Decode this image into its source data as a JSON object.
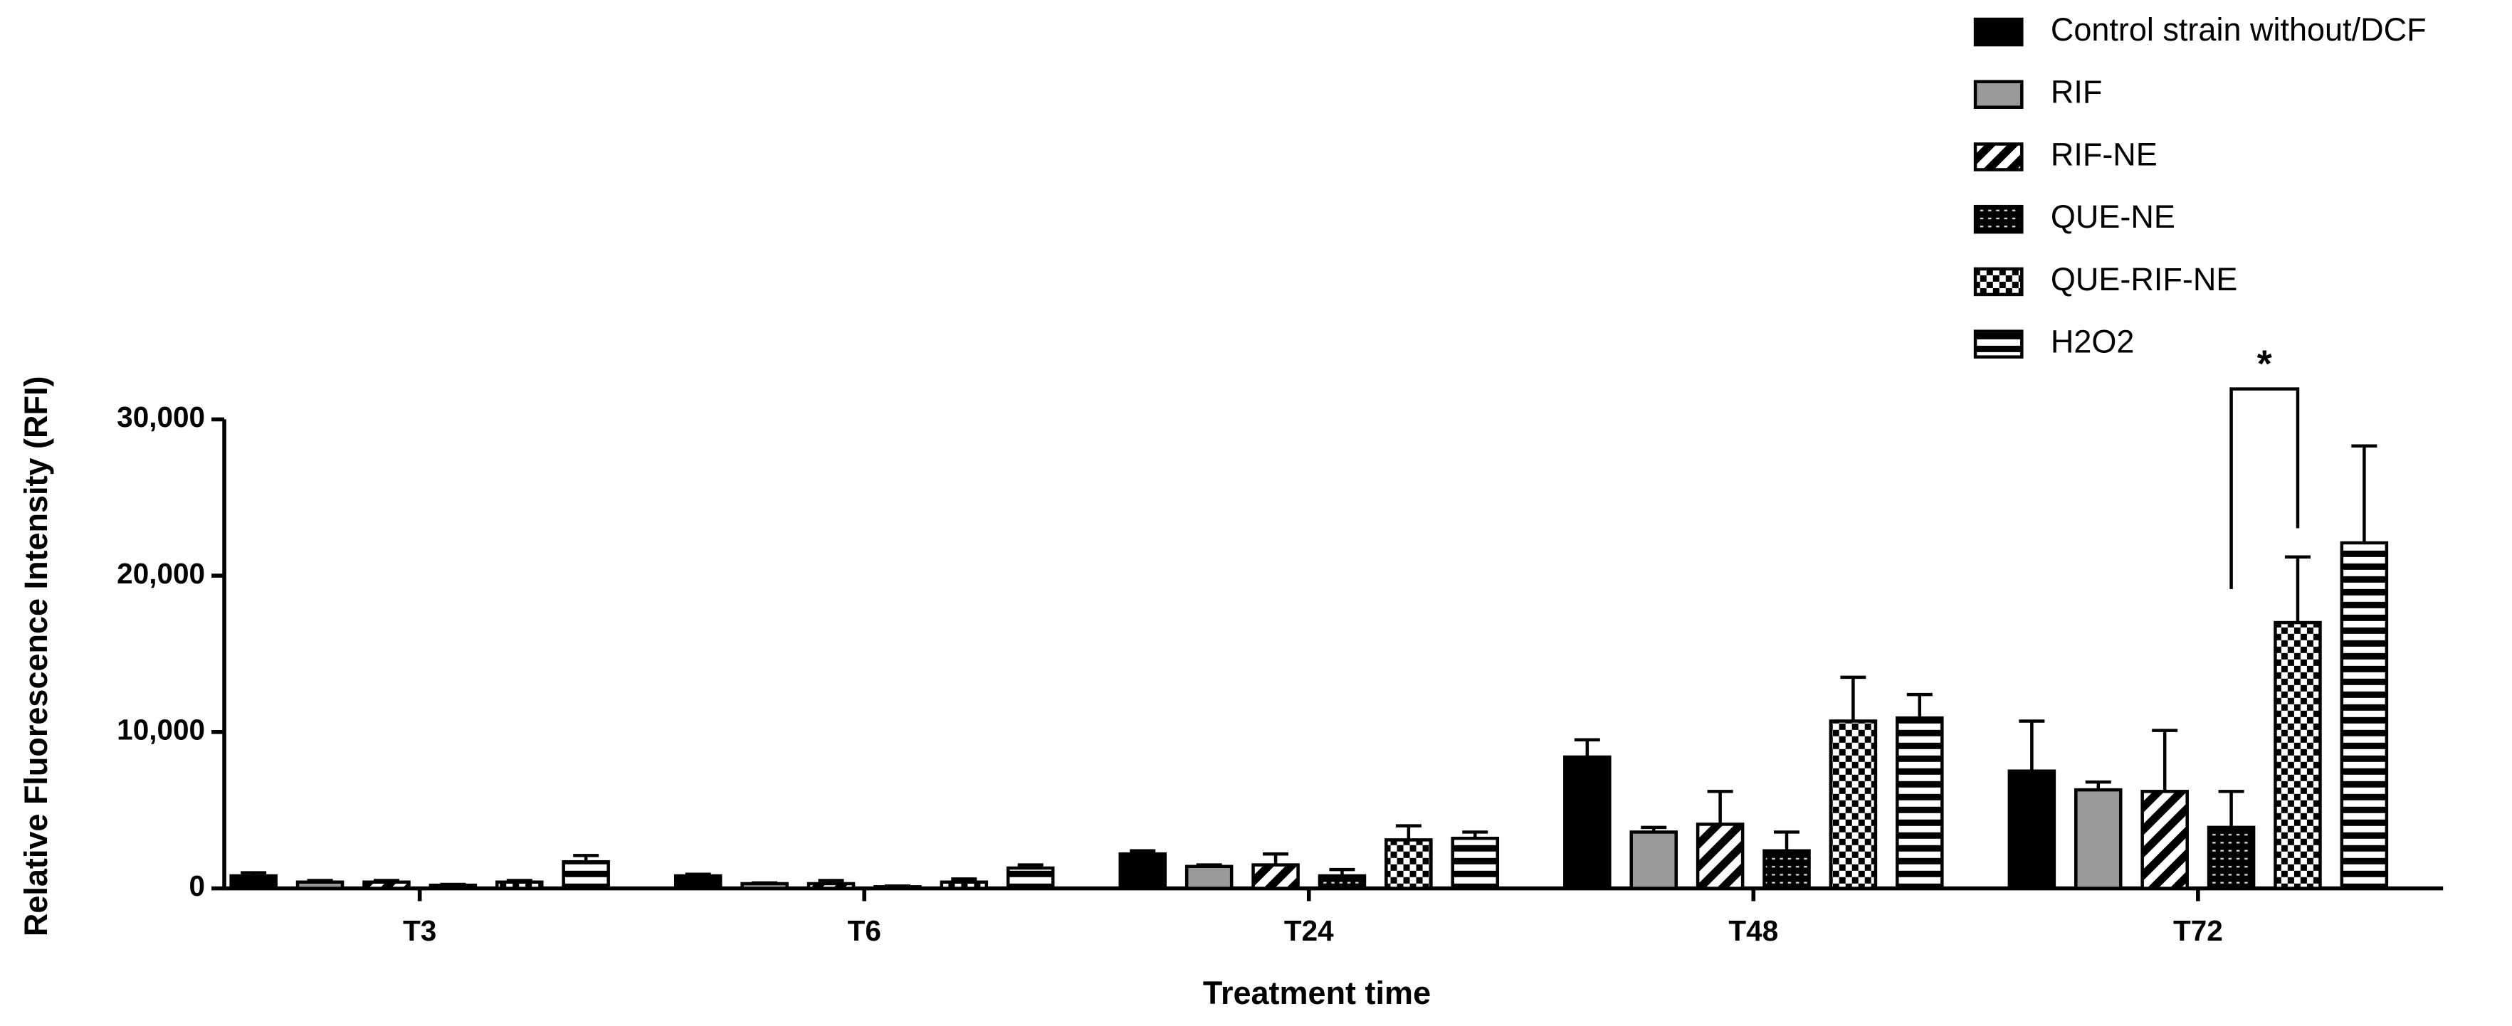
{
  "chart_data": {
    "type": "bar",
    "x_label": "Treatment time",
    "y_label": "Relative Fluorescence Intensity (RFI)",
    "categories": [
      "T3",
      "T6",
      "T24",
      "T48",
      "T72"
    ],
    "ylim": [
      0,
      30000
    ],
    "yticks": [
      {
        "value": 0,
        "label": "0"
      },
      {
        "value": 10000,
        "label": "10,000"
      },
      {
        "value": 20000,
        "label": "20,000"
      },
      {
        "value": 30000,
        "label": "30,000"
      }
    ],
    "series": [
      {
        "name": "Control strain without/DCF",
        "color": "#000000",
        "pattern": "solid",
        "values": [
          800,
          800,
          2200,
          8400,
          7500
        ],
        "errors": [
          200,
          100,
          200,
          1100,
          3200
        ]
      },
      {
        "name": "RIF",
        "color": "#9a9a9a",
        "pattern": "solid",
        "values": [
          400,
          300,
          1400,
          3600,
          6300
        ],
        "errors": [
          100,
          50,
          100,
          300,
          500
        ]
      },
      {
        "name": "RIF-NE",
        "color": "#555555",
        "pattern": "diagonal",
        "values": [
          400,
          300,
          1500,
          4100,
          6200
        ],
        "errors": [
          100,
          200,
          700,
          2100,
          3900
        ]
      },
      {
        "name": "QUE-NE",
        "color": "#222222",
        "pattern": "dots",
        "values": [
          200,
          100,
          800,
          2400,
          3900
        ],
        "errors": [
          50,
          50,
          400,
          1200,
          2300
        ]
      },
      {
        "name": "QUE-RIF-NE",
        "color": "#333333",
        "pattern": "checker",
        "values": [
          400,
          400,
          3100,
          10700,
          17000
        ],
        "errors": [
          100,
          200,
          900,
          2800,
          4200
        ]
      },
      {
        "name": "H2O2",
        "color": "#444444",
        "pattern": "horizontal",
        "values": [
          1700,
          1300,
          3200,
          10900,
          22100
        ],
        "errors": [
          400,
          200,
          400,
          1500,
          6200
        ]
      }
    ],
    "annotations": [
      {
        "text": "*",
        "category": 4,
        "from_series": 3,
        "to_series": 4
      }
    ]
  }
}
